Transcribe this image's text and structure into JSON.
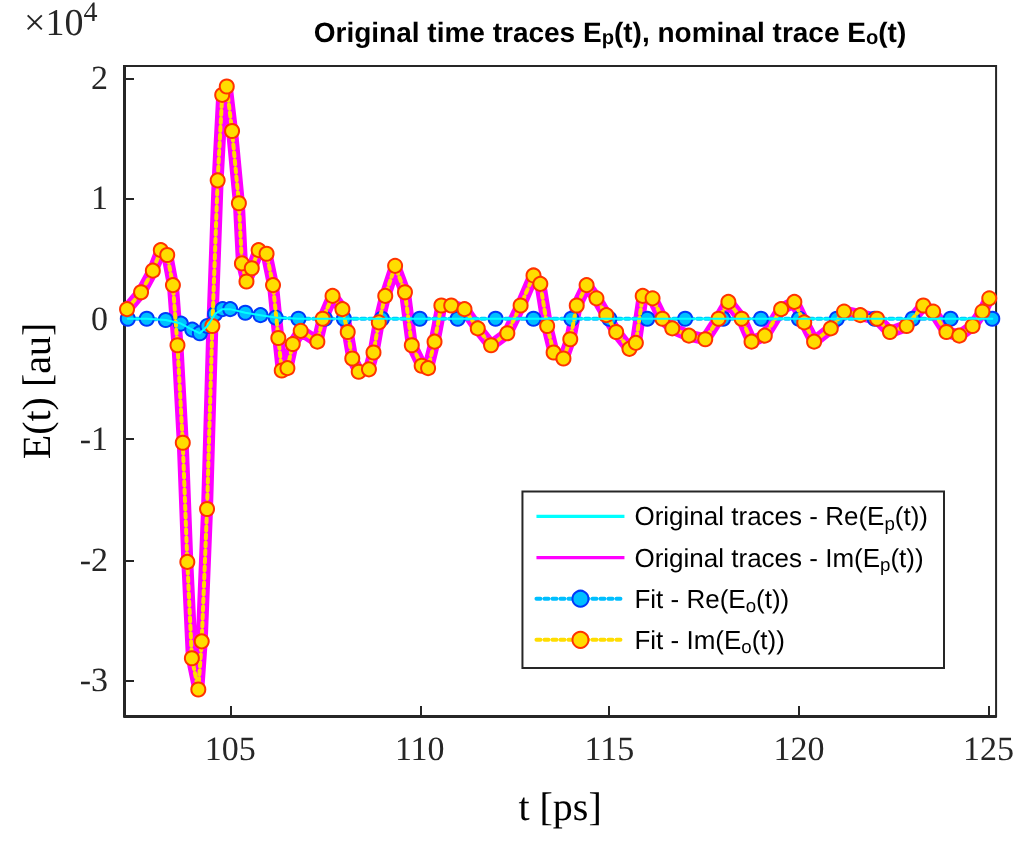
{
  "chart_data": {
    "type": "line",
    "title": "Original time traces E$_{p}$(t), nominal trace E$_{o}$(t)",
    "xlabel": "t [ps]",
    "ylabel": "E(t) [au]",
    "annotations": [
      "×10$^{4}$"
    ],
    "x": [
      102.28,
      102.65,
      102.96,
      103.17,
      103.34,
      103.49,
      103.61,
      103.75,
      103.87,
      103.99,
      104.16,
      104.25,
      104.39,
      104.53,
      104.67,
      104.79,
      104.91,
      105.05,
      105.23,
      105.31,
      105.43,
      105.57,
      105.75,
      105.96,
      106.13,
      106.27,
      106.36,
      106.51,
      106.65,
      106.86,
      107.3,
      107.44,
      107.7,
      107.96,
      108.1,
      108.22,
      108.39,
      108.66,
      108.78,
      108.92,
      109.09,
      109.35,
      109.61,
      109.79,
      110.05,
      110.22,
      110.39,
      110.57,
      110.83,
      111.18,
      111.53,
      111.88,
      112.31,
      112.66,
      113.0,
      113.18,
      113.36,
      113.53,
      113.79,
      113.97,
      114.14,
      114.4,
      114.66,
      114.92,
      115.18,
      115.53,
      115.7,
      115.88,
      116.14,
      116.4,
      116.66,
      117.1,
      117.53,
      117.88,
      118.14,
      118.49,
      118.75,
      119.1,
      119.53,
      119.88,
      120.14,
      120.4,
      120.84,
      121.19,
      121.62,
      122.06,
      122.4,
      122.84,
      123.28,
      123.54,
      123.89,
      124.23,
      124.58,
      124.84,
      125.02
    ],
    "series": [
      {
        "name": "Original traces - Re(E$_{p}$(t))",
        "color": "#00ffff",
        "marker": "none",
        "line_style": "solid",
        "x": [
          102.3,
          102.8,
          103.3,
          103.7,
          104.0,
          104.2,
          104.4,
          104.6,
          104.8,
          105.0,
          105.4,
          105.8,
          106.2,
          106.8,
          107.5,
          108.0,
          109.0,
          110.0,
          111.0,
          112.0,
          113.0,
          114.0,
          115.0,
          116.0,
          117.0,
          118.0,
          119.0,
          120.0,
          121.0,
          122.0,
          123.0,
          124.0,
          125.1
        ],
        "values": [
          0,
          0,
          -0.01,
          -0.04,
          -0.09,
          -0.12,
          -0.06,
          0.04,
          0.08,
          0.08,
          0.05,
          0.03,
          0.01,
          0,
          0,
          0,
          0,
          0,
          0,
          0,
          0,
          0,
          0,
          0,
          0,
          0,
          0,
          0,
          0,
          0,
          0,
          0,
          0
        ]
      },
      {
        "name": "Original traces - Im(E$_{p}$(t))",
        "color": "#ff00ff",
        "marker": "none",
        "line_style": "solid",
        "values": [
          0.08,
          0.22,
          0.4,
          0.57,
          0.53,
          0.28,
          -0.22,
          -1.03,
          -2.02,
          -2.82,
          -3.08,
          -2.68,
          -1.58,
          -0.06,
          1.15,
          1.86,
          1.93,
          1.56,
          0.96,
          0.46,
          0.31,
          0.42,
          0.57,
          0.54,
          0.28,
          -0.16,
          -0.43,
          -0.41,
          -0.21,
          -0.1,
          -0.19,
          0,
          0.19,
          0.08,
          -0.11,
          -0.33,
          -0.44,
          -0.42,
          -0.28,
          -0.03,
          0.19,
          0.44,
          0.22,
          -0.22,
          -0.39,
          -0.41,
          -0.19,
          0.11,
          0.11,
          0.08,
          -0.08,
          -0.22,
          -0.12,
          0.11,
          0.36,
          0.29,
          -0.06,
          -0.28,
          -0.33,
          -0.17,
          0.11,
          0.28,
          0.17,
          0.03,
          -0.11,
          -0.25,
          -0.2,
          0.19,
          0.17,
          0,
          -0.08,
          -0.14,
          -0.17,
          0,
          0.14,
          0,
          -0.19,
          -0.14,
          0.08,
          0.14,
          -0.03,
          -0.19,
          -0.08,
          0.06,
          0.03,
          0,
          -0.11,
          -0.06,
          0.11,
          0.06,
          -0.11,
          -0.14,
          -0.06,
          0.06,
          0.17
        ]
      },
      {
        "name": "Fit - Re(E$_{o}$(t))",
        "color": "#00bfff",
        "marker": "circle",
        "line_style": "dotted",
        "x": [
          102.3,
          102.8,
          103.3,
          103.7,
          104.0,
          104.2,
          104.4,
          104.6,
          104.8,
          105.0,
          105.4,
          105.8,
          106.2,
          106.8,
          107.5,
          108.0,
          109.0,
          110.0,
          111.0,
          112.0,
          113.0,
          114.0,
          115.0,
          116.0,
          117.0,
          118.0,
          119.0,
          120.0,
          121.0,
          122.0,
          123.0,
          124.0,
          125.1
        ],
        "values": [
          0,
          0,
          -0.01,
          -0.04,
          -0.09,
          -0.12,
          -0.06,
          0.04,
          0.08,
          0.08,
          0.05,
          0.03,
          0.01,
          0,
          0,
          0,
          0,
          0,
          0,
          0,
          0,
          0,
          0,
          0,
          0,
          0,
          0,
          0,
          0,
          0,
          0,
          0,
          0
        ]
      },
      {
        "name": "Fit - Im(E$_{o}$(t))",
        "color": "#ffdd00",
        "marker": "circle",
        "line_style": "dotted",
        "values": [
          0.08,
          0.22,
          0.4,
          0.57,
          0.53,
          0.28,
          -0.22,
          -1.03,
          -2.02,
          -2.82,
          -3.08,
          -2.68,
          -1.58,
          -0.06,
          1.15,
          1.86,
          1.93,
          1.56,
          0.96,
          0.46,
          0.31,
          0.42,
          0.57,
          0.54,
          0.28,
          -0.16,
          -0.43,
          -0.41,
          -0.21,
          -0.1,
          -0.19,
          0,
          0.19,
          0.08,
          -0.11,
          -0.33,
          -0.44,
          -0.42,
          -0.28,
          -0.03,
          0.19,
          0.44,
          0.22,
          -0.22,
          -0.39,
          -0.41,
          -0.19,
          0.11,
          0.11,
          0.08,
          -0.08,
          -0.22,
          -0.12,
          0.11,
          0.36,
          0.29,
          -0.06,
          -0.28,
          -0.33,
          -0.17,
          0.11,
          0.28,
          0.17,
          0.03,
          -0.11,
          -0.25,
          -0.2,
          0.19,
          0.17,
          0,
          -0.08,
          -0.14,
          -0.17,
          0,
          0.14,
          0,
          -0.19,
          -0.14,
          0.08,
          0.14,
          -0.03,
          -0.19,
          -0.08,
          0.06,
          0.03,
          0,
          -0.11,
          -0.06,
          0.11,
          0.06,
          -0.11,
          -0.14,
          -0.06,
          0.06,
          0.17
        ]
      }
    ],
    "xlim": [
      102.2,
      125.2
    ],
    "xticks": [
      105,
      110,
      115,
      120,
      125
    ],
    "ylim": [
      -3.3,
      2.1
    ],
    "yticks": [
      -3,
      -2,
      -1,
      0,
      1,
      2
    ],
    "grid": false,
    "legend": "bottom right"
  }
}
